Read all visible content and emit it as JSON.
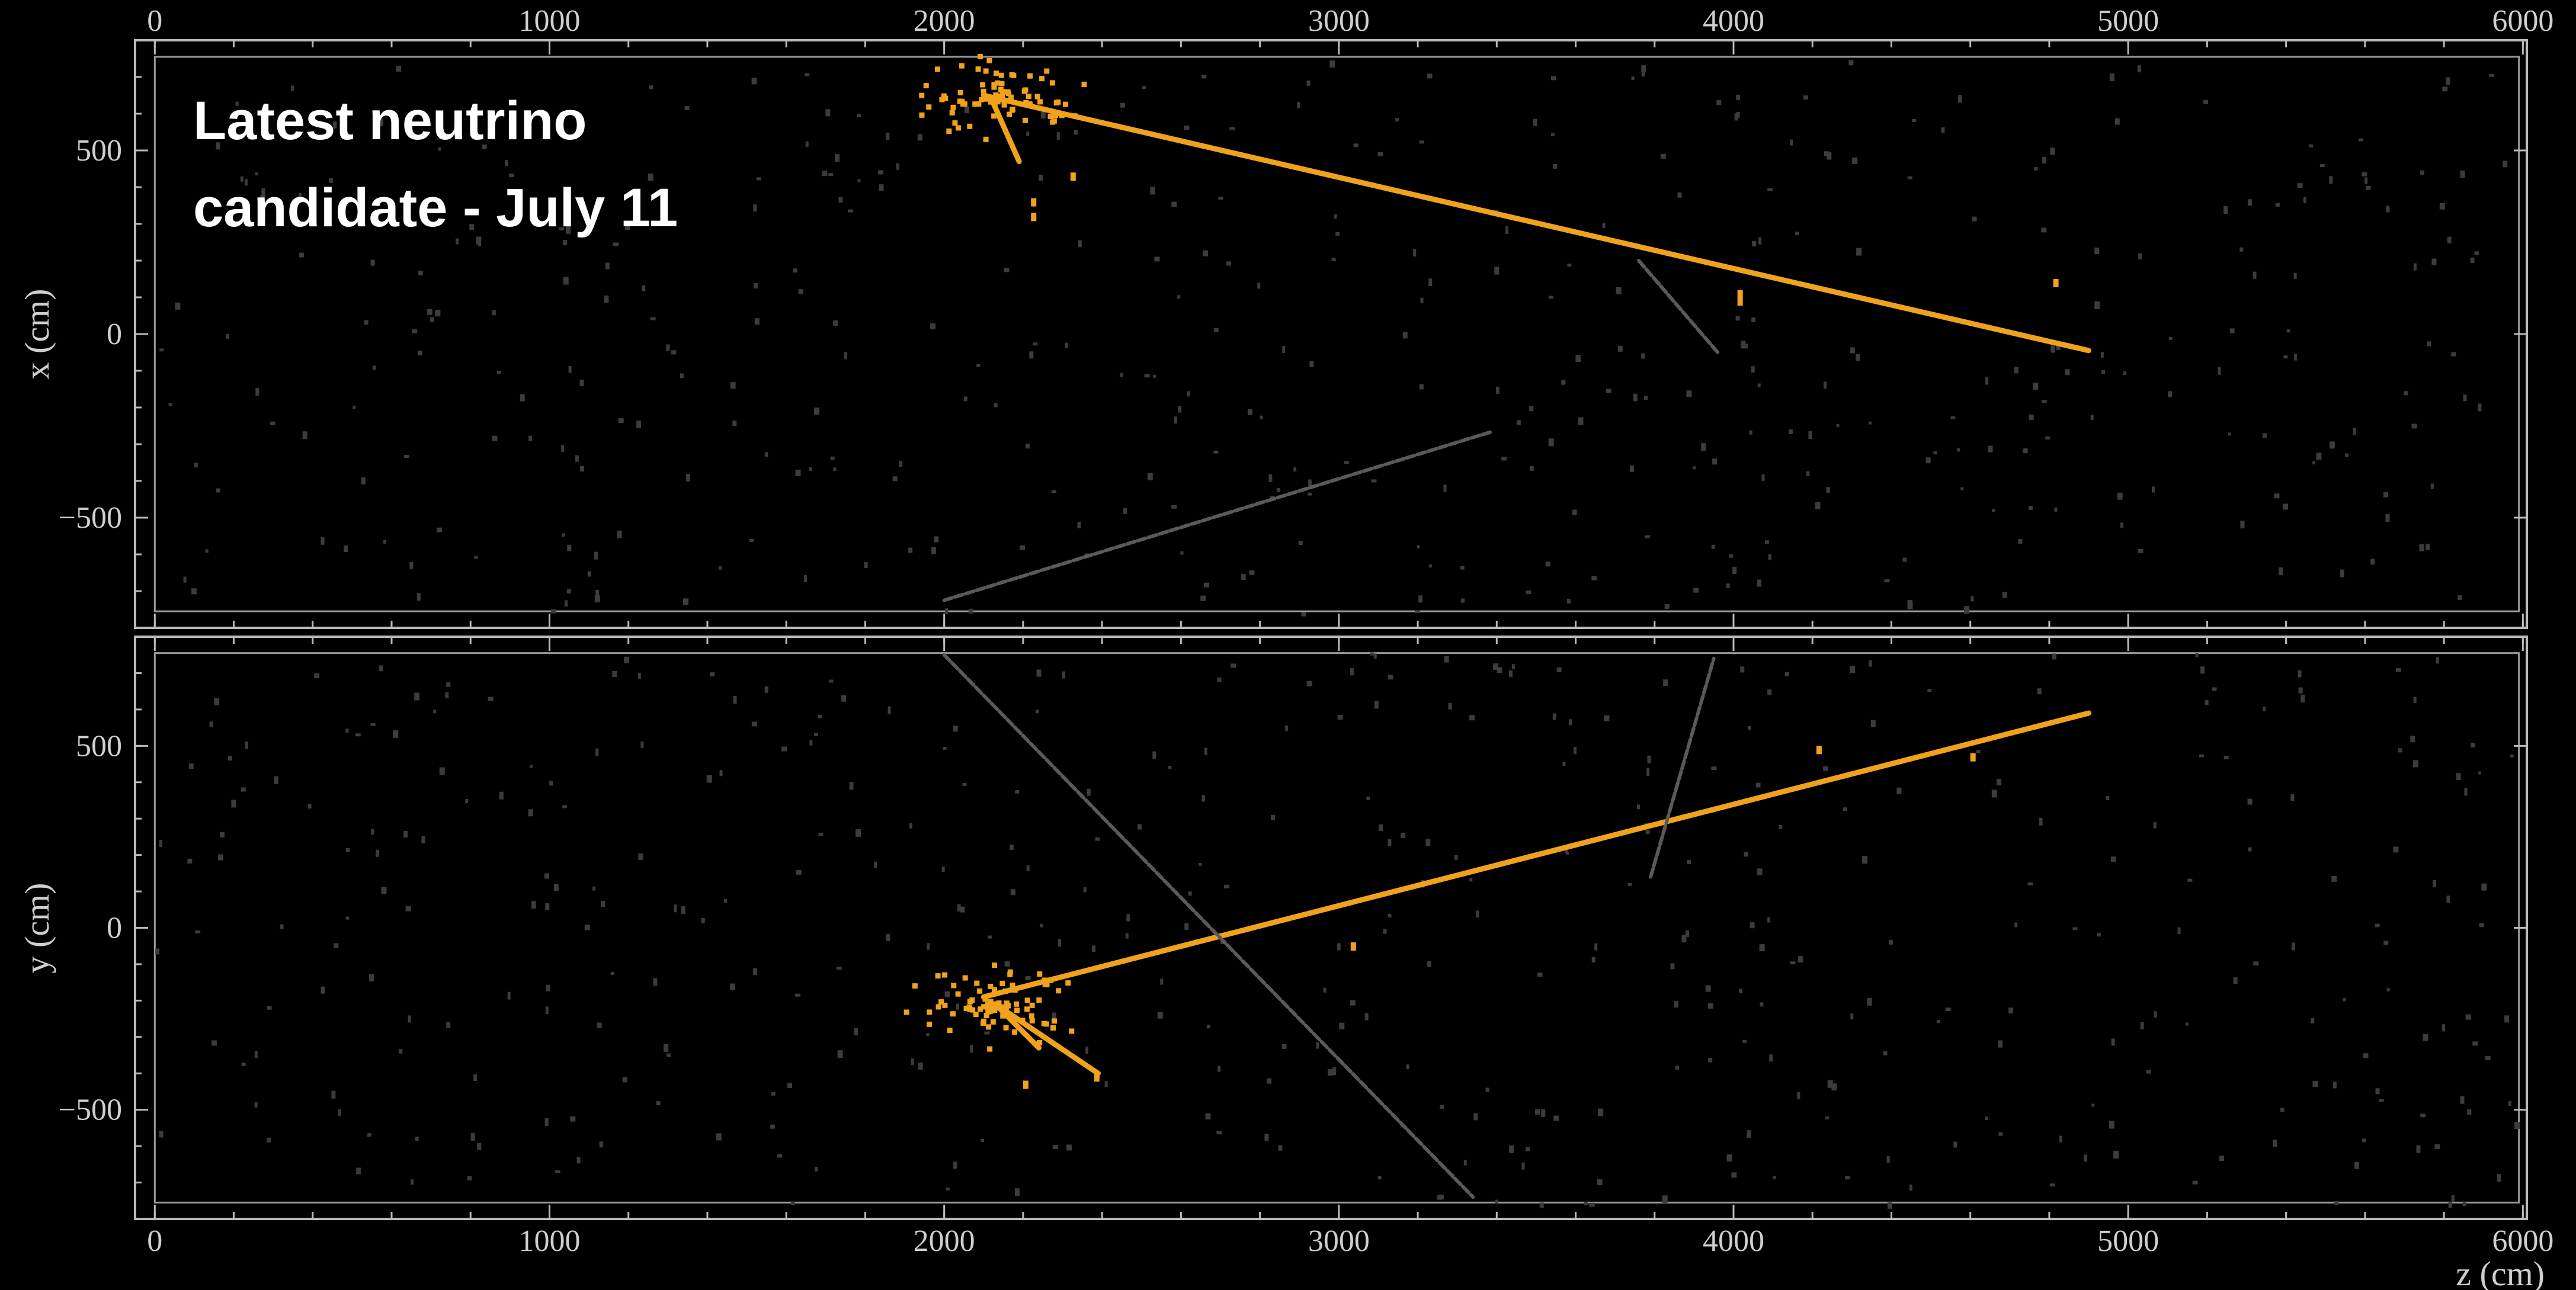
{
  "caption": [
    "Latest neutrino",
    "candidate - July 11"
  ],
  "colors": {
    "background": "#000000",
    "neutrino": "#f0a21c",
    "cosmic": "#5a5a5a",
    "noise": "#3c3c3c",
    "frame": "#b9b9b9"
  },
  "chart_data": {
    "type": "scatter",
    "xlabel": "z (cm)",
    "xlim": [
      -50,
      6010
    ],
    "xticks": [
      "0",
      "1000",
      "2000",
      "3000",
      "4000",
      "5000",
      "6000"
    ],
    "xtick_values": [
      0,
      1000,
      2000,
      3000,
      4000,
      5000,
      6000
    ],
    "grid": false,
    "panels": [
      {
        "id": "top",
        "ylabel": "x (cm)",
        "ylim": [
          -800,
          800
        ],
        "yticks": [
          "500",
          "0",
          "−500"
        ],
        "ytick_values": [
          500,
          0,
          -500
        ],
        "tracks": [
          {
            "kind": "neutrino",
            "x": [
              2100,
              4900
            ],
            "y": [
              650,
              -45
            ]
          },
          {
            "kind": "neutrino",
            "x": [
              2120,
              2190
            ],
            "y": [
              640,
              470
            ]
          },
          {
            "kind": "cosmic",
            "x": [
              2000,
              3390
            ],
            "y": [
              -725,
              -265
            ]
          },
          {
            "kind": "cosmic",
            "x": [
              3760,
              3960
            ],
            "y": [
              200,
              -50
            ]
          }
        ],
        "vertex_cluster": {
          "x": 2130,
          "y": 650
        },
        "extra_hits": [
          [
            2220,
            330
          ],
          [
            2220,
            370
          ],
          [
            2320,
            440
          ],
          [
            4010,
            120
          ],
          [
            4010,
            100
          ],
          [
            4810,
            150
          ]
        ]
      },
      {
        "id": "bottom",
        "ylabel": "y (cm)",
        "ylim": [
          -800,
          800
        ],
        "yticks": [
          "500",
          "0",
          "−500"
        ],
        "ytick_values": [
          500,
          0,
          -500
        ],
        "tracks": [
          {
            "kind": "neutrino",
            "x": [
              2100,
              4900
            ],
            "y": [
              -190,
              590
            ]
          },
          {
            "kind": "neutrino",
            "x": [
              2130,
              2390
            ],
            "y": [
              -210,
              -400
            ]
          },
          {
            "kind": "neutrino",
            "x": [
              2130,
              2240
            ],
            "y": [
              -210,
              -330
            ]
          },
          {
            "kind": "cosmic",
            "x": [
              2000,
              3340
            ],
            "y": [
              750,
              -740
            ]
          },
          {
            "kind": "cosmic",
            "x": [
              3790,
              3950
            ],
            "y": [
              140,
              740
            ]
          }
        ],
        "vertex_cluster": {
          "x": 2120,
          "y": -210
        },
        "extra_hits": [
          [
            2200,
            -420
          ],
          [
            2380,
            -400
          ],
          [
            3030,
            -40
          ],
          [
            4210,
            500
          ],
          [
            4600,
            480
          ]
        ]
      }
    ],
    "annotations": [
      "Latest neutrino",
      "candidate - July 11"
    ]
  }
}
